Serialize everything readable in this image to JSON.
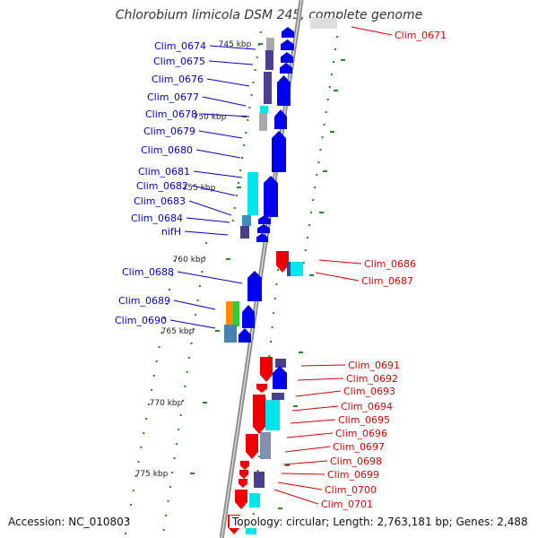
{
  "title": "Chlorobium limicola DSM 245, complete genome",
  "accession": "Accession: NC_010803",
  "summary": "Topology: circular; Length: 2,763,181 bp; Genes: 2,488",
  "scale_labels": [
    "745 kbp",
    "750 kbp",
    "755 kbp",
    "760 kbp",
    "765 kbp",
    "770 kbp",
    "775 kbp"
  ],
  "legend_colors": {
    "forward_label": "#0000cc",
    "reverse_label": "#dd0000",
    "forward_cds": "#0000ee",
    "reverse_cds": "#ee0000",
    "tick": "#228b22",
    "backbone": "#8a8a8a"
  },
  "forward_genes": [
    "Clim_0674",
    "Clim_0675",
    "Clim_0676",
    "Clim_0677",
    "Clim_0678",
    "Clim_0679",
    "Clim_0680",
    "Clim_0681",
    "Clim_0682",
    "Clim_0683",
    "Clim_0684",
    "nifH",
    "Clim_0688",
    "Clim_0689",
    "Clim_0690"
  ],
  "reverse_genes": [
    "Clim_0671",
    "Clim_0686",
    "Clim_0687",
    "Clim_0691",
    "Clim_0692",
    "Clim_0693",
    "Clim_0694",
    "Clim_0695",
    "Clim_0696",
    "Clim_0697",
    "Clim_0698",
    "Clim_0699",
    "Clim_0700",
    "Clim_0701"
  ]
}
